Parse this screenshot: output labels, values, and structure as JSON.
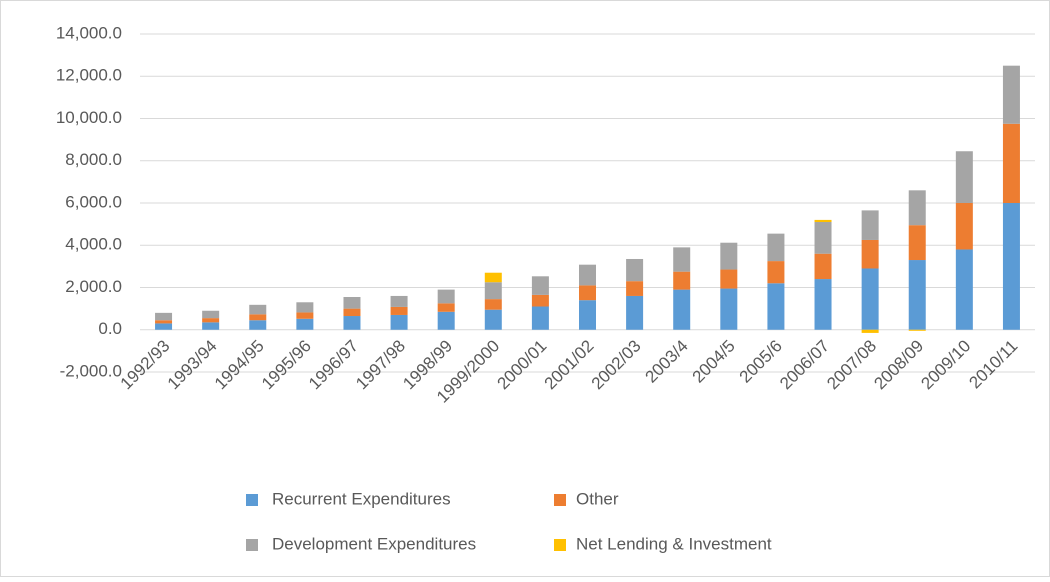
{
  "chart_data": {
    "type": "stacked_bar",
    "categories": [
      "1992/93",
      "1993/94",
      "1994/95",
      "1995/96",
      "1996/97",
      "1997/98",
      "1998/99",
      "1999/2000",
      "2000/01",
      "2001/02",
      "2002/03",
      "2003/4",
      "2004/5",
      "2005/6",
      "2006/07",
      "2007/08",
      "2008/09",
      "2009/10",
      "2010/11"
    ],
    "series": [
      {
        "name": "Recurrent Expenditures",
        "color": "#5b9bd5",
        "values": [
          300,
          350,
          450,
          520,
          650,
          700,
          850,
          950,
          1100,
          1400,
          1600,
          1900,
          1950,
          2200,
          2400,
          2900,
          3300,
          3800,
          6000
        ]
      },
      {
        "name": "Other",
        "color": "#ed7d31",
        "values": [
          150,
          200,
          280,
          300,
          350,
          380,
          400,
          500,
          550,
          700,
          700,
          850,
          900,
          1050,
          1200,
          1350,
          1650,
          2200,
          3750
        ]
      },
      {
        "name": "Development Expenditures",
        "color": "#a5a5a5",
        "values": [
          350,
          350,
          450,
          480,
          550,
          520,
          650,
          800,
          880,
          980,
          1050,
          1150,
          1270,
          1300,
          1500,
          1400,
          1650,
          2450,
          2750
        ]
      },
      {
        "name": "Net Lending & Investment",
        "color": "#ffc000",
        "values": [
          0,
          0,
          0,
          0,
          0,
          0,
          0,
          450,
          0,
          0,
          0,
          0,
          0,
          0,
          100,
          -150,
          -50,
          0,
          0
        ]
      }
    ],
    "ylim": [
      -2000,
      14000
    ],
    "yticks": [
      {
        "value": -2000,
        "label": "-2,000.0"
      },
      {
        "value": 0,
        "label": "0.0"
      },
      {
        "value": 2000,
        "label": "2,000.0"
      },
      {
        "value": 4000,
        "label": "4,000.0"
      },
      {
        "value": 6000,
        "label": "6,000.0"
      },
      {
        "value": 8000,
        "label": "8,000.0"
      },
      {
        "value": 10000,
        "label": "10,000.0"
      },
      {
        "value": 12000,
        "label": "12,000.0"
      },
      {
        "value": 14000,
        "label": "14,000.0"
      }
    ],
    "grid": true,
    "legend": "bottom"
  }
}
